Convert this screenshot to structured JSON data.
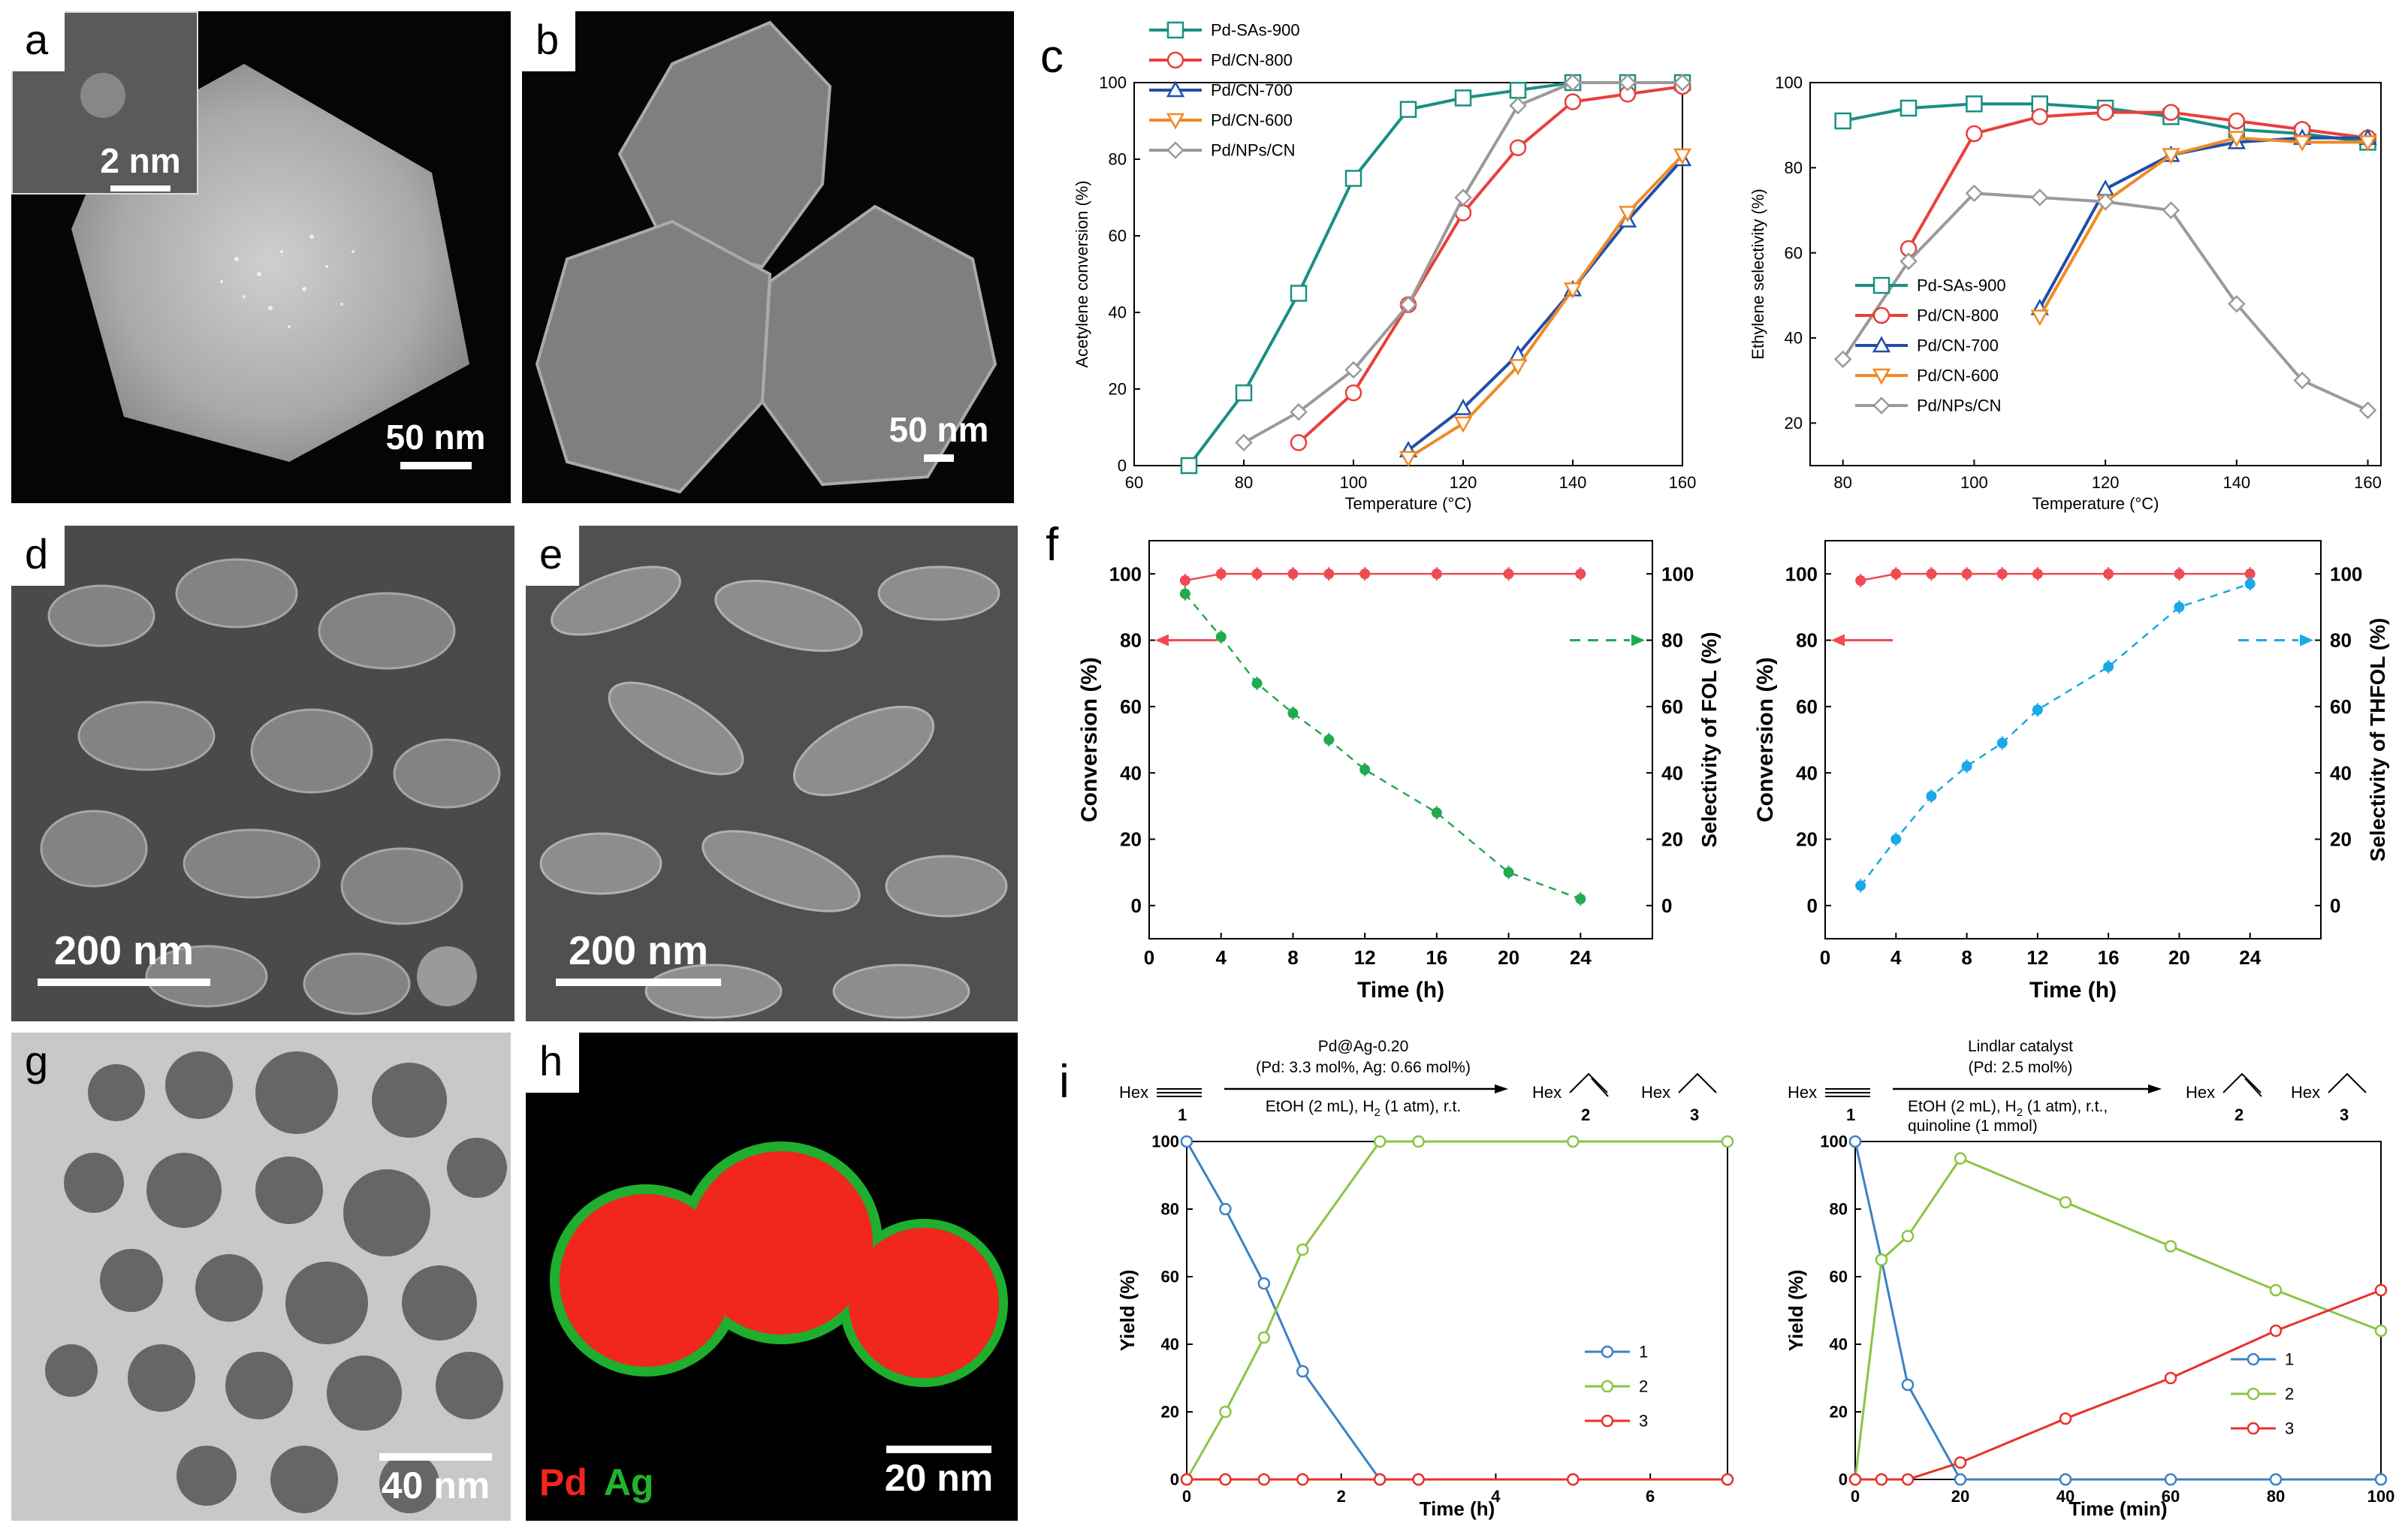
{
  "panels": {
    "a": {
      "label": "a",
      "scale": "50 nm",
      "inset_scale": "2 nm"
    },
    "b": {
      "label": "b",
      "scale": "50 nm"
    },
    "c": {
      "label": "c"
    },
    "d": {
      "label": "d",
      "scale": "200 nm"
    },
    "e": {
      "label": "e",
      "scale": "200 nm"
    },
    "f": {
      "label": "f"
    },
    "g": {
      "label": "g",
      "scale": "40 nm"
    },
    "h": {
      "label": "h",
      "scale": "20 nm",
      "legend_pd": "Pd",
      "legend_ag": "Ag"
    },
    "i": {
      "label": "i"
    }
  },
  "chart_data": [
    {
      "id": "c-left",
      "type": "line",
      "xlabel": "Temperature (°C)",
      "ylabel": "Acetylene conversion (%)",
      "xlim": [
        60,
        160
      ],
      "ylim": [
        0,
        100
      ],
      "xticks": [
        60,
        80,
        100,
        120,
        140,
        160
      ],
      "yticks": [
        0,
        20,
        40,
        60,
        80,
        100
      ],
      "legend": "top-left",
      "series": [
        {
          "name": "Pd-SAs-900",
          "color": "#1a8f84",
          "marker": "square",
          "x": [
            70,
            80,
            90,
            100,
            110,
            120,
            130,
            140,
            150,
            160
          ],
          "y": [
            0,
            19,
            45,
            75,
            93,
            96,
            98,
            100,
            100,
            100
          ]
        },
        {
          "name": "Pd/CN-800",
          "color": "#e8403a",
          "marker": "circle",
          "x": [
            90,
            100,
            110,
            120,
            130,
            140,
            150,
            160
          ],
          "y": [
            6,
            19,
            42,
            66,
            83,
            95,
            97,
            99
          ]
        },
        {
          "name": "Pd/CN-700",
          "color": "#1f4fa8",
          "marker": "triangle-up",
          "x": [
            110,
            120,
            130,
            140,
            150,
            160
          ],
          "y": [
            4,
            15,
            29,
            46,
            64,
            80
          ]
        },
        {
          "name": "Pd/CN-600",
          "color": "#f08a24",
          "marker": "triangle-down",
          "x": [
            110,
            120,
            130,
            140,
            150,
            160
          ],
          "y": [
            2,
            11,
            26,
            46,
            66,
            81
          ]
        },
        {
          "name": "Pd/NPs/CN",
          "color": "#9a9a9a",
          "marker": "diamond",
          "x": [
            80,
            90,
            100,
            110,
            120,
            130,
            140,
            150,
            160
          ],
          "y": [
            6,
            14,
            25,
            42,
            70,
            94,
            100,
            100,
            100
          ]
        }
      ]
    },
    {
      "id": "c-right",
      "type": "line",
      "xlabel": "Temperature (°C)",
      "ylabel": "Ethylene selectivity (%)",
      "xlim": [
        75,
        162
      ],
      "ylim": [
        10,
        100
      ],
      "xticks": [
        80,
        100,
        120,
        140,
        160
      ],
      "yticks": [
        20,
        40,
        60,
        80,
        100
      ],
      "legend": "bottom-left",
      "series": [
        {
          "name": "Pd-SAs-900",
          "color": "#1a8f84",
          "marker": "square",
          "x": [
            80,
            90,
            100,
            110,
            120,
            130,
            140,
            150,
            160
          ],
          "y": [
            91,
            94,
            95,
            95,
            94,
            92,
            89,
            88,
            86
          ]
        },
        {
          "name": "Pd/CN-800",
          "color": "#e8403a",
          "marker": "circle",
          "x": [
            90,
            100,
            110,
            120,
            130,
            140,
            150,
            160
          ],
          "y": [
            61,
            88,
            92,
            93,
            93,
            91,
            89,
            87
          ]
        },
        {
          "name": "Pd/CN-700",
          "color": "#1f4fa8",
          "marker": "triangle-up",
          "x": [
            110,
            120,
            130,
            140,
            150,
            160
          ],
          "y": [
            47,
            75,
            83,
            86,
            87,
            87
          ]
        },
        {
          "name": "Pd/CN-600",
          "color": "#f08a24",
          "marker": "triangle-down",
          "x": [
            110,
            120,
            130,
            140,
            150,
            160
          ],
          "y": [
            45,
            72,
            83,
            87,
            86,
            86
          ]
        },
        {
          "name": "Pd/NPs/CN",
          "color": "#9a9a9a",
          "marker": "diamond",
          "x": [
            80,
            90,
            100,
            110,
            120,
            130,
            140,
            150,
            160
          ],
          "y": [
            35,
            58,
            74,
            73,
            72,
            70,
            48,
            30,
            23
          ]
        }
      ]
    },
    {
      "id": "f-left",
      "type": "line",
      "xlabel": "Time (h)",
      "ylabel": "Conversion (%)",
      "y2label": "Selectivity of FOL (%)",
      "xlim": [
        0,
        28
      ],
      "ylim": [
        -10,
        110
      ],
      "xticks": [
        0,
        4,
        8,
        12,
        16,
        20,
        24
      ],
      "yticks": [
        0,
        20,
        40,
        60,
        80,
        100
      ],
      "series": [
        {
          "name": "Conversion",
          "color": "#f04a55",
          "style": "solid",
          "axis": "left",
          "x": [
            2,
            4,
            6,
            8,
            10,
            12,
            16,
            20,
            24
          ],
          "y": [
            98,
            100,
            100,
            100,
            100,
            100,
            100,
            100,
            100
          ]
        },
        {
          "name": "Selectivity of FOL",
          "color": "#22aa4f",
          "style": "dashed",
          "axis": "right",
          "x": [
            2,
            4,
            6,
            8,
            10,
            12,
            16,
            20,
            24
          ],
          "y": [
            94,
            81,
            67,
            58,
            50,
            41,
            28,
            10,
            2
          ]
        }
      ]
    },
    {
      "id": "f-right",
      "type": "line",
      "xlabel": "Time (h)",
      "ylabel": "Conversion (%)",
      "y2label": "Selectivity of THFOL (%)",
      "xlim": [
        0,
        28
      ],
      "ylim": [
        -10,
        110
      ],
      "xticks": [
        0,
        4,
        8,
        12,
        16,
        20,
        24
      ],
      "yticks": [
        0,
        20,
        40,
        60,
        80,
        100
      ],
      "series": [
        {
          "name": "Conversion",
          "color": "#f04a55",
          "style": "solid",
          "axis": "left",
          "x": [
            2,
            4,
            6,
            8,
            10,
            12,
            16,
            20,
            24
          ],
          "y": [
            98,
            100,
            100,
            100,
            100,
            100,
            100,
            100,
            100
          ]
        },
        {
          "name": "Selectivity of THFOL",
          "color": "#1aa8e8",
          "style": "dashed",
          "axis": "right",
          "x": [
            2,
            4,
            6,
            8,
            10,
            12,
            16,
            20,
            24
          ],
          "y": [
            6,
            20,
            33,
            42,
            49,
            59,
            72,
            90,
            97
          ]
        }
      ]
    },
    {
      "id": "i-left",
      "type": "line",
      "xlabel": "Time (h)",
      "ylabel": "Yield (%)",
      "xlim": [
        0,
        7
      ],
      "ylim": [
        0,
        100
      ],
      "xticks": [
        0,
        2,
        4,
        6
      ],
      "yticks": [
        0,
        20,
        40,
        60,
        80,
        100
      ],
      "legend": "bottom-right",
      "series": [
        {
          "name": "1",
          "color": "#3a82c4",
          "x": [
            0,
            0.5,
            1,
            1.5,
            2.5,
            3,
            5,
            7
          ],
          "y": [
            100,
            80,
            58,
            32,
            0,
            0,
            0,
            0
          ]
        },
        {
          "name": "2",
          "color": "#8ac543",
          "x": [
            0,
            0.5,
            1,
            1.5,
            2.5,
            3,
            5,
            7
          ],
          "y": [
            0,
            20,
            42,
            68,
            100,
            100,
            100,
            100
          ]
        },
        {
          "name": "3",
          "color": "#e8302a",
          "x": [
            0,
            0.5,
            1,
            1.5,
            2.5,
            3,
            5,
            7
          ],
          "y": [
            0,
            0,
            0,
            0,
            0,
            0,
            0,
            0
          ]
        }
      ]
    },
    {
      "id": "i-right",
      "type": "line",
      "xlabel": "Time (min)",
      "ylabel": "Yield (%)",
      "xlim": [
        0,
        100
      ],
      "ylim": [
        0,
        100
      ],
      "xticks": [
        0,
        20,
        40,
        60,
        80,
        100
      ],
      "yticks": [
        0,
        20,
        40,
        60,
        80,
        100
      ],
      "legend": "bottom-right",
      "series": [
        {
          "name": "1",
          "color": "#3a82c4",
          "x": [
            0,
            5,
            10,
            20,
            40,
            60,
            80,
            100
          ],
          "y": [
            100,
            65,
            28,
            0,
            0,
            0,
            0,
            0
          ]
        },
        {
          "name": "2",
          "color": "#8ac543",
          "x": [
            0,
            5,
            10,
            20,
            40,
            60,
            80,
            100
          ],
          "y": [
            0,
            65,
            72,
            95,
            82,
            69,
            56,
            44
          ]
        },
        {
          "name": "3",
          "color": "#e8302a",
          "x": [
            0,
            5,
            10,
            20,
            40,
            60,
            80,
            100
          ],
          "y": [
            0,
            0,
            0,
            5,
            18,
            30,
            44,
            56
          ]
        }
      ]
    }
  ],
  "schemes": {
    "left": {
      "reactant": "Hex",
      "num1": "1",
      "num2": "2",
      "num3": "3",
      "prod2": "Hex",
      "prod3": "Hex",
      "above1": "Pd@Ag-0.20",
      "above2": "(Pd: 3.3 mol%, Ag: 0.66 mol%)",
      "below1": "EtOH (2 mL), H",
      "below1_sub": "2",
      "below1_end": " (1 atm), r.t.",
      "below2": ""
    },
    "right": {
      "reactant": "Hex",
      "num1": "1",
      "num2": "2",
      "num3": "3",
      "prod2": "Hex",
      "prod3": "Hex",
      "above1": "Lindlar catalyst",
      "above2": "(Pd: 2.5 mol%)",
      "below1": "EtOH (2 mL), H",
      "below1_sub": "2",
      "below1_end": " (1 atm), r.t.,",
      "below2": "quinoline (1 mmol)"
    }
  }
}
